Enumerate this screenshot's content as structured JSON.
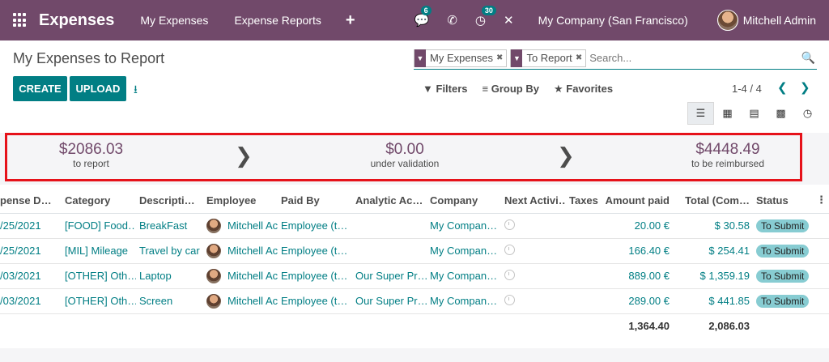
{
  "navbar": {
    "brand": "Expenses",
    "menu": [
      "My Expenses",
      "Expense Reports"
    ],
    "plus": "+",
    "messages_badge": "6",
    "activity_badge": "30",
    "company": "My Company (San Francisco)",
    "user": "Mitchell Admin"
  },
  "control": {
    "title": "My Expenses to Report",
    "create_label": "CREATE",
    "upload_label": "UPLOAD",
    "facets": [
      "My Expenses",
      "To Report"
    ],
    "search_placeholder": "Search...",
    "filters_label": "Filters",
    "groupby_label": "Group By",
    "favorites_label": "Favorites",
    "pager": "1-4 / 4"
  },
  "summary": {
    "to_report_value": "$2086.03",
    "to_report_label": "to report",
    "validation_value": "$0.00",
    "validation_label": "under validation",
    "reimbursed_value": "$4448.49",
    "reimbursed_label": "to be reimbursed"
  },
  "table": {
    "headers": [
      "pense D…",
      "Category",
      "Descripti…",
      "Employee",
      "Paid By",
      "Analytic Ac…",
      "Company",
      "Next Activi…",
      "Taxes",
      "Amount paid",
      "Total (Com…",
      "Status"
    ],
    "rows": [
      {
        "date": "/25/2021",
        "category": "[FOOD] Food…",
        "description": "BreakFast",
        "employee": "Mitchell Ac",
        "paid_by": "Employee (t…",
        "analytic": "",
        "company": "My Compan…",
        "taxes": "",
        "amount": "20.00 €",
        "total": "$ 30.58",
        "status": "To Submit"
      },
      {
        "date": "/25/2021",
        "category": "[MIL] Mileage",
        "description": "Travel by car",
        "employee": "Mitchell Ac",
        "paid_by": "Employee (t…",
        "analytic": "",
        "company": "My Compan…",
        "taxes": "",
        "amount": "166.40 €",
        "total": "$ 254.41",
        "status": "To Submit"
      },
      {
        "date": "/03/2021",
        "category": "[OTHER] Oth…",
        "description": "Laptop",
        "employee": "Mitchell Ac",
        "paid_by": "Employee (t…",
        "analytic": "Our Super Pr…",
        "company": "My Compan…",
        "taxes": "",
        "amount": "889.00 €",
        "total": "$ 1,359.19",
        "status": "To Submit"
      },
      {
        "date": "/03/2021",
        "category": "[OTHER] Oth…",
        "description": "Screen",
        "employee": "Mitchell Ac",
        "paid_by": "Employee (t…",
        "analytic": "Our Super Pr…",
        "company": "My Compan…",
        "taxes": "",
        "amount": "289.00 €",
        "total": "$ 441.85",
        "status": "To Submit"
      }
    ],
    "totals": {
      "amount": "1,364.40",
      "total": "2,086.03"
    }
  }
}
